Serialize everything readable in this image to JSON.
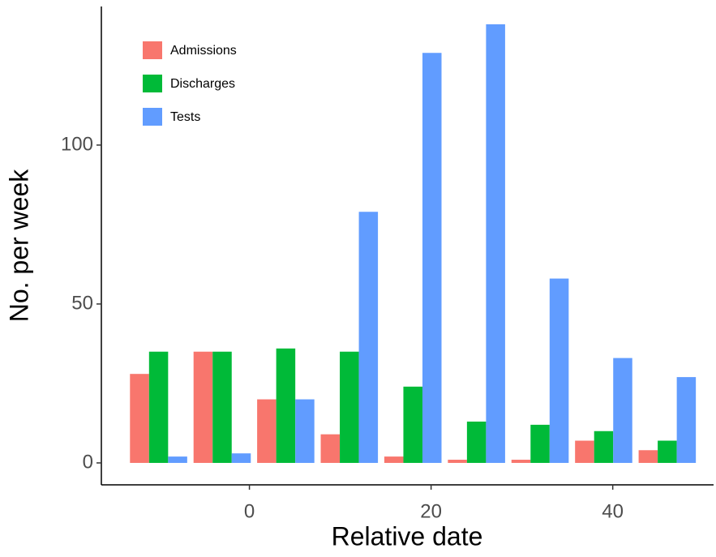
{
  "chart_data": {
    "type": "bar",
    "x_label": "Relative date",
    "y_label": "No. per week",
    "x": [
      -10,
      -3,
      4,
      11,
      18,
      25,
      32,
      39,
      46
    ],
    "series": [
      {
        "name": "Admissions",
        "color": "#F8766D",
        "values": [
          28,
          35,
          20,
          9,
          2,
          1,
          1,
          7,
          4
        ]
      },
      {
        "name": "Discharges",
        "color": "#00BA38",
        "values": [
          35,
          35,
          36,
          35,
          24,
          13,
          12,
          10,
          7
        ]
      },
      {
        "name": "Tests",
        "color": "#619CFF",
        "values": [
          2,
          3,
          20,
          79,
          129,
          138,
          58,
          33,
          27
        ]
      }
    ],
    "xlim": [
      -16.3,
      51.1
    ],
    "xticks": [
      0,
      20,
      40
    ],
    "ylim": [
      -6.9,
      143.6
    ],
    "yticks": [
      0,
      50,
      100
    ],
    "grid": false,
    "legend": "top-left"
  }
}
